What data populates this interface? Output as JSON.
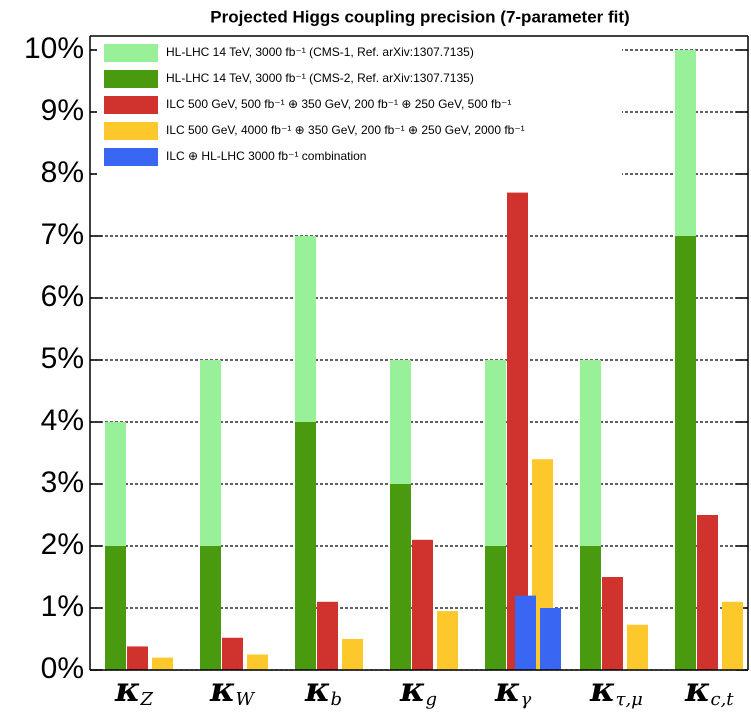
{
  "chart_data": {
    "type": "bar",
    "title": "Projected Higgs coupling precision (7-parameter fit)",
    "categories": [
      "κZ",
      "κW",
      "κb",
      "κg",
      "κγ",
      "κτ,μ",
      "κc,t"
    ],
    "series": [
      {
        "name": "HL-LHC 14 TeV, 3000 fb⁻¹ (CMS-1, Ref. arXiv:1307.7135)",
        "color": "#98f098",
        "values": [
          4,
          5,
          7,
          5,
          5,
          5,
          10
        ]
      },
      {
        "name": "HL-LHC 14 TeV, 3000 fb⁻¹ (CMS-2, Ref. arXiv:1307.7135)",
        "color": "#4a9a10",
        "values": [
          2,
          2,
          4,
          3,
          2,
          2,
          7
        ]
      },
      {
        "name": "ILC 500 GeV,   500 fb⁻¹ ⊕ 350 GeV, 200 fb⁻¹ ⊕ 250 GeV,   500 fb⁻¹",
        "color": "#d0322e",
        "values": [
          0.38,
          0.52,
          1.1,
          2.1,
          7.7,
          1.5,
          2.5
        ]
      },
      {
        "name": "ILC 500 GeV, 4000 fb⁻¹ ⊕ 350 GeV, 200 fb⁻¹ ⊕ 250 GeV, 2000 fb⁻¹",
        "color": "#fcc82c",
        "values": [
          0.2,
          0.25,
          0.5,
          0.95,
          3.4,
          0.73,
          1.1
        ]
      },
      {
        "name": "ILC ⊕ HL-LHC 3000 fb⁻¹ combination",
        "color": "#3a66f4",
        "values": [
          null,
          null,
          null,
          null,
          [
            1.2,
            1.0
          ],
          null,
          null
        ]
      }
    ],
    "ylim": [
      0,
      10
    ],
    "yticks": [
      {
        "value": 0,
        "label": "0%"
      },
      {
        "value": 1,
        "label": "1%"
      },
      {
        "value": 2,
        "label": "2%"
      },
      {
        "value": 3,
        "label": "3%"
      },
      {
        "value": 4,
        "label": "4%"
      },
      {
        "value": 5,
        "label": "5%"
      },
      {
        "value": 6,
        "label": "6%"
      },
      {
        "value": 7,
        "label": "7%"
      },
      {
        "value": 8,
        "label": "8%"
      },
      {
        "value": 9,
        "label": "9%"
      },
      {
        "value": 10,
        "label": "10%"
      }
    ],
    "grid": true
  }
}
